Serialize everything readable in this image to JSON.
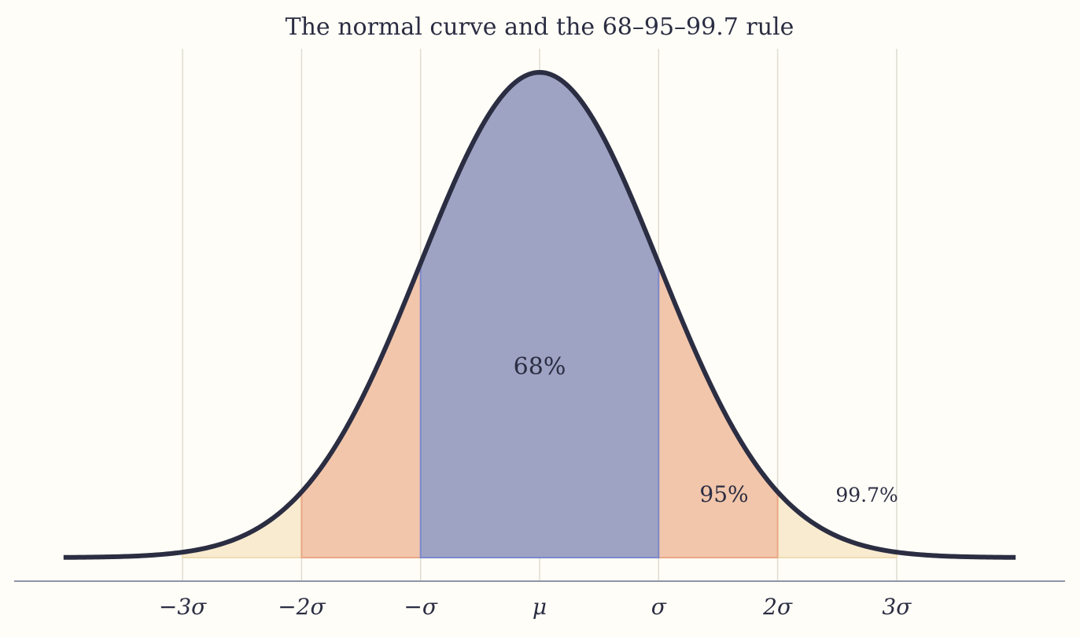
{
  "chart_data": {
    "type": "area",
    "title": "The normal curve and the 68–95–99.7 rule",
    "xlabel": "",
    "ylabel": "",
    "xlim": [
      -4,
      4
    ],
    "grid": "vertical at integer σ",
    "tick_values": [
      -3,
      -2,
      -1,
      0,
      1,
      2,
      3
    ],
    "tick_labels": [
      "−3σ",
      "−2σ",
      "−σ",
      "μ",
      "σ",
      "2σ",
      "3σ"
    ],
    "curve": {
      "name": "",
      "mean": 0,
      "sd": 1,
      "x_range": [
        -4,
        4
      ]
    },
    "bands": [
      {
        "label": "99.7%",
        "from": -3,
        "to": 3,
        "color": "#f8ebcf"
      },
      {
        "label": "95%",
        "from": -2,
        "to": 2,
        "color": "#f2c6ab"
      },
      {
        "label": "68%",
        "from": -1,
        "to": 1,
        "color": "#9fa3c3"
      }
    ],
    "colors": {
      "curve": "#2b2d42",
      "axis": "#8f95a8",
      "grid": "#dedcd2",
      "band_68_edge": "#7b88cc",
      "band_95_edge": "#e9a887",
      "band_99_edge": "#f0dcb4",
      "background": "#fefdf7"
    }
  }
}
